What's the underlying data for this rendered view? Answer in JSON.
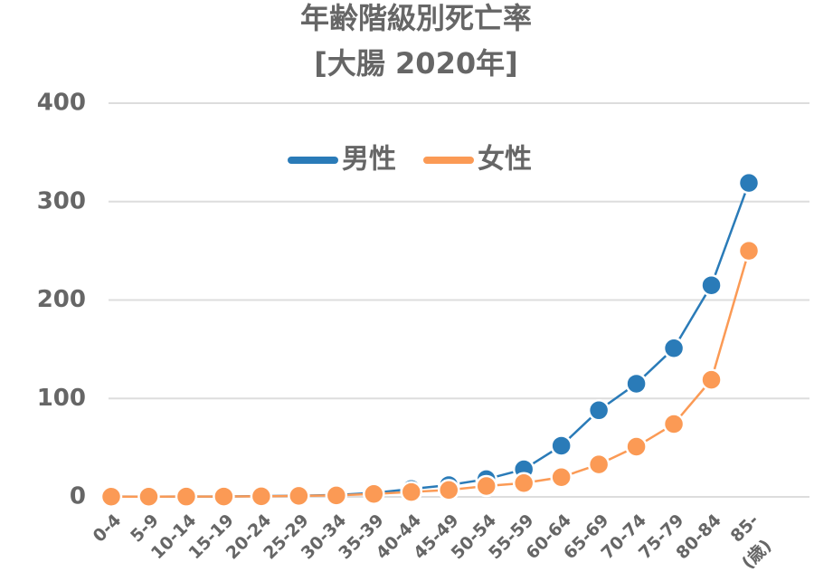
{
  "chart_data": {
    "type": "line",
    "title": "年齢階級別死亡率",
    "subtitle": "[大腸 2020年]",
    "x_unit": "(歳)",
    "categories": [
      "0-4",
      "5-9",
      "10-14",
      "15-19",
      "20-24",
      "25-29",
      "30-34",
      "35-39",
      "40-44",
      "45-49",
      "50-54",
      "55-59",
      "60-64",
      "65-69",
      "70-74",
      "75-79",
      "80-84",
      "85-"
    ],
    "series": [
      {
        "name": "男性",
        "color": "#2a7bb8",
        "values": [
          0.3,
          0.2,
          0.3,
          0.4,
          0.8,
          1.2,
          2,
          4,
          8,
          12,
          18,
          28,
          52,
          88,
          115,
          151,
          215,
          319
        ]
      },
      {
        "name": "女性",
        "color": "#fb9a55",
        "values": [
          0.2,
          0.2,
          0.3,
          0.4,
          0.6,
          1,
          1.5,
          3,
          5,
          7,
          11,
          14,
          20,
          33,
          51,
          74,
          119,
          250
        ]
      }
    ],
    "ylim": [
      0,
      400
    ],
    "yticks": [
      0,
      100,
      200,
      300,
      400
    ],
    "grid": true,
    "legend": "top"
  }
}
